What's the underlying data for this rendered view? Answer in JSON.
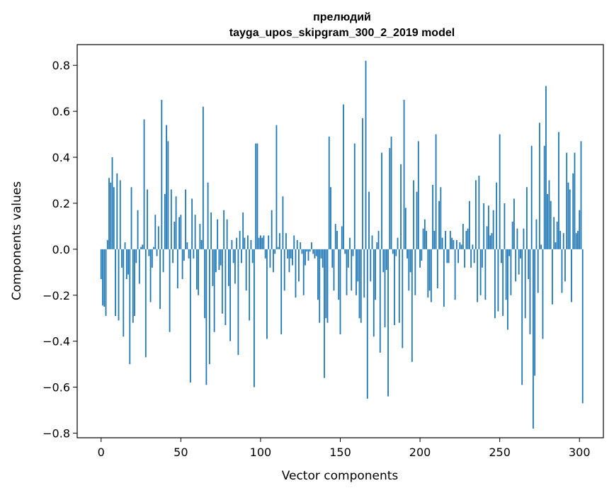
{
  "chart_data": {
    "type": "bar",
    "title": "прелюдий",
    "subtitle": "tayga_upos_skipgram_300_2_2019 model",
    "xlabel": "Vector components",
    "ylabel": "Components values",
    "xlim": [
      -15,
      315
    ],
    "ylim": [
      -0.82,
      0.89
    ],
    "xticks": [
      0,
      50,
      100,
      150,
      200,
      250,
      300
    ],
    "yticks": [
      -0.8,
      -0.6,
      -0.4,
      -0.2,
      0.0,
      0.2,
      0.4,
      0.6,
      0.8
    ],
    "xtick_labels": [
      "0",
      "50",
      "100",
      "150",
      "200",
      "250",
      "300"
    ],
    "ytick_labels": [
      "−0.8",
      "−0.6",
      "−0.4",
      "−0.2",
      "0.0",
      "0.2",
      "0.4",
      "0.6",
      "0.8"
    ],
    "bar_color": "#1f77b4",
    "grid": false,
    "values": [
      -0.13,
      -0.245,
      -0.25,
      -0.29,
      0.04,
      0.31,
      0.29,
      0.4,
      0.27,
      -0.29,
      0.33,
      -0.31,
      0.3,
      -0.08,
      -0.38,
      0.03,
      -0.13,
      -0.11,
      -0.5,
      0.27,
      -0.32,
      -0.29,
      -0.06,
      0.17,
      -0.15,
      0.01,
      0.02,
      0.565,
      -0.47,
      0.26,
      -0.03,
      -0.23,
      -0.08,
      0.01,
      0.15,
      -0.03,
      0.1,
      -0.26,
      0.65,
      -0.1,
      0.24,
      0.54,
      0.47,
      -0.36,
      0.26,
      -0.06,
      0.12,
      0.23,
      -0.17,
      0.14,
      0.15,
      -0.13,
      -0.05,
      0.26,
      0.03,
      -0.04,
      -0.58,
      0.22,
      -0.04,
      0.15,
      -0.175,
      -0.2,
      0.11,
      0.04,
      0.62,
      -0.3,
      -0.59,
      0.29,
      -0.5,
      0.16,
      -0.16,
      -0.36,
      -0.1,
      0.13,
      -0.09,
      -0.07,
      -0.28,
      0.17,
      -0.33,
      0.13,
      -0.16,
      -0.4,
      0.04,
      -0.06,
      -0.15,
      0.05,
      -0.46,
      0.08,
      -0.06,
      0.16,
      0.05,
      -0.18,
      0.06,
      -0.31,
      0.04,
      -0.06,
      -0.6,
      0.46,
      0.46,
      0.05,
      0.06,
      0.05,
      0.06,
      -0.04,
      -0.39,
      0.06,
      -0.08,
      0.17,
      -0.1,
      -0.02,
      0.54,
      0.01,
      0.07,
      -0.37,
      0.23,
      -0.18,
      0.07,
      -0.04,
      -0.1,
      -0.04,
      -0.07,
      0.06,
      -0.21,
      0.04,
      -0.14,
      0.03,
      -0.02,
      -0.2,
      -0.07,
      -0.01,
      -0.05,
      -0.01,
      0.03,
      -0.02,
      -0.04,
      -0.03,
      -0.22,
      -0.32,
      -0.04,
      -0.08,
      -0.56,
      -0.3,
      -0.32,
      0.49,
      0.27,
      -0.08,
      -0.18,
      0.11,
      0.08,
      -0.22,
      -0.37,
      0.1,
      0.63,
      -0.02,
      -0.2,
      -0.08,
      0.05,
      -0.18,
      -0.03,
      0.46,
      -0.2,
      -0.14,
      -0.3,
      -0.32,
      0.57,
      -0.21,
      0.82,
      -0.65,
      0.25,
      -0.14,
      0.06,
      -0.38,
      -0.22,
      0.03,
      0.08,
      -0.45,
      0.42,
      -0.1,
      -0.34,
      -0.09,
      -0.64,
      0.44,
      0.49,
      -0.02,
      -0.33,
      -0.03,
      0.05,
      -0.32,
      0.37,
      -0.43,
      0.65,
      0.18,
      -0.04,
      -0.18,
      -0.1,
      -0.49,
      0.3,
      -0.2,
      0.25,
      0.47,
      -0.08,
      -0.05,
      0.09,
      0.13,
      0.08,
      -0.21,
      -0.18,
      -0.23,
      0.28,
      0.08,
      0.5,
      -0.17,
      0.21,
      0.27,
      0.05,
      -0.25,
      0.08,
      -0.06,
      -0.06,
      0.08,
      0.05,
      0.04,
      -0.22,
      0.04,
      -0.06,
      0.03,
      0.02,
      0.11,
      -0.08,
      0.08,
      0.09,
      0.21,
      -0.08,
      0.02,
      -0.06,
      0.3,
      -0.23,
      0.32,
      -0.2,
      -0.08,
      0.2,
      -0.22,
      0.1,
      0.19,
      0.06,
      0.07,
      0.17,
      -0.3,
      0.29,
      -0.27,
      0.5,
      -0.06,
      -0.29,
      0.2,
      -0.22,
      -0.35,
      -0.03,
      -0.2,
      0.12,
      0.22,
      -0.14,
      0.09,
      -0.11,
      -0.04,
      -0.59,
      0.09,
      -0.3,
      0.27,
      -0.13,
      -0.37,
      0.45,
      -0.78,
      -0.55,
      0.13,
      -0.19,
      0.55,
      0.02,
      -0.39,
      0.45,
      0.71,
      0.24,
      0.3,
      0.21,
      -0.24,
      0.14,
      0.03,
      0.12,
      0.51,
      0.08,
      -0.19,
      0.07,
      -0.14,
      0.42,
      0.29,
      0.26,
      -0.23,
      0.33,
      0.42,
      0.07,
      0.08,
      0.17,
      0.47,
      -0.67
    ]
  }
}
